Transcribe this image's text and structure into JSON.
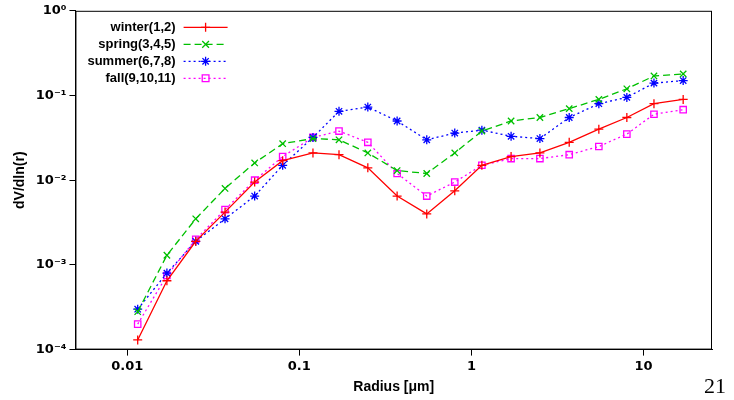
{
  "chart_data": {
    "type": "line",
    "x_label": "Radius [μm]",
    "y_label": "dV/dln(r)",
    "annotation": "21",
    "log": true,
    "grid": false,
    "legend": "upper left",
    "x": [
      0.0115,
      0.017,
      0.025,
      0.037,
      0.055,
      0.08,
      0.12,
      0.17,
      0.25,
      0.37,
      0.55,
      0.8,
      1.15,
      1.7,
      2.5,
      3.7,
      5.5,
      8,
      11.5,
      17
    ],
    "xlim": [
      0.005,
      25
    ],
    "xticks": [
      0.01,
      0.1,
      1,
      10
    ],
    "ylim": [
      0.0001,
      1
    ],
    "yticks": [
      {
        "value": 0.0001,
        "label": "10⁻⁴"
      },
      {
        "value": 0.001,
        "label": "10⁻³"
      },
      {
        "value": 0.01,
        "label": "10⁻²"
      },
      {
        "value": 0.1,
        "label": "10⁻¹"
      },
      {
        "value": 1,
        "label": "10⁰"
      }
    ],
    "series": [
      {
        "name": "winter(1,2)",
        "color": "#ff0000",
        "marker": "plus",
        "line_style": "solid",
        "values": [
          0.00013,
          0.00065,
          0.0019,
          0.0042,
          0.0095,
          0.017,
          0.021,
          0.02,
          0.014,
          0.0065,
          0.004,
          0.0075,
          0.015,
          0.019,
          0.021,
          0.028,
          0.04,
          0.055,
          0.08,
          0.09
        ]
      },
      {
        "name": "spring(3,4,5)",
        "color": "#00c000",
        "marker": "x",
        "line_style": "dashed",
        "values": [
          0.00028,
          0.0013,
          0.0035,
          0.008,
          0.016,
          0.027,
          0.031,
          0.03,
          0.021,
          0.013,
          0.012,
          0.021,
          0.038,
          0.05,
          0.055,
          0.07,
          0.09,
          0.12,
          0.17,
          0.18
        ]
      },
      {
        "name": "summer(6,7,8)",
        "color": "#0000ff",
        "marker": "star",
        "line_style": "dotted",
        "values": [
          0.0003,
          0.0008,
          0.0019,
          0.0035,
          0.0065,
          0.015,
          0.032,
          0.065,
          0.073,
          0.05,
          0.03,
          0.036,
          0.039,
          0.033,
          0.031,
          0.055,
          0.08,
          0.095,
          0.14,
          0.15
        ]
      },
      {
        "name": "fall(9,10,11)",
        "color": "#ff00ff",
        "marker": "square",
        "line_style": "dotted",
        "values": [
          0.0002,
          0.00075,
          0.002,
          0.0045,
          0.01,
          0.019,
          0.032,
          0.038,
          0.028,
          0.012,
          0.0065,
          0.0095,
          0.015,
          0.018,
          0.018,
          0.02,
          0.025,
          0.035,
          0.06,
          0.068
        ]
      }
    ]
  }
}
